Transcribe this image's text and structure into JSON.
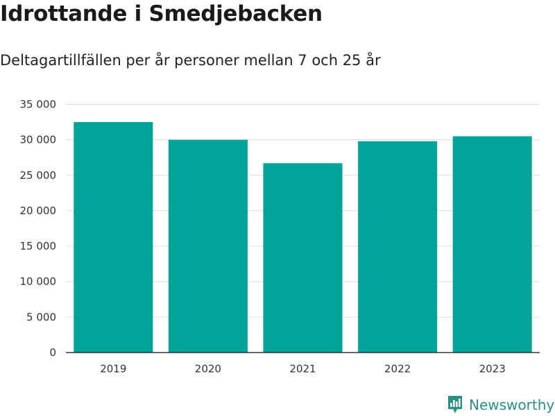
{
  "title": "Idrottande i Smedjebacken",
  "subtitle": "Deltagartillfällen per år personer mellan 7 och 25 år",
  "brand": {
    "name": "Newsworthy",
    "icon": "newsworthy-logo-icon",
    "color": "#2a8f86"
  },
  "chart_data": {
    "type": "bar",
    "title": "Idrottande i Smedjebacken",
    "subtitle": "Deltagartillfällen per år personer mellan 7 och 25 år",
    "xlabel": "",
    "ylabel": "",
    "categories": [
      "2019",
      "2020",
      "2021",
      "2022",
      "2023"
    ],
    "values": [
      32500,
      30000,
      26700,
      29800,
      30500
    ],
    "ylim": [
      0,
      35000
    ],
    "yticks": [
      0,
      5000,
      10000,
      15000,
      20000,
      25000,
      30000,
      35000
    ],
    "ytick_labels": [
      "0",
      "5 000",
      "10 000",
      "15 000",
      "20 000",
      "25 000",
      "30 000",
      "35 000"
    ],
    "grid": true,
    "bar_color": "#00a398",
    "grid_color": "#d9d9d9"
  }
}
